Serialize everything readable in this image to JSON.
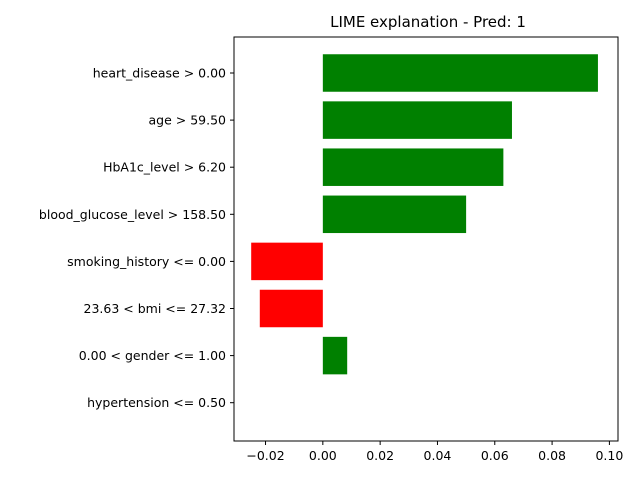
{
  "chart_data": {
    "type": "bar",
    "orientation": "horizontal",
    "title": "LIME explanation - Pred: 1",
    "xlabel": "",
    "ylabel": "",
    "categories": [
      "heart_disease > 0.00",
      "age > 59.50",
      "HbA1c_level > 6.20",
      "blood_glucose_level > 158.50",
      "smoking_history <= 0.00",
      "23.63 < bmi <= 27.32",
      "0.00 < gender <= 1.00",
      "hypertension <= 0.50"
    ],
    "values": [
      0.096,
      0.066,
      0.063,
      0.05,
      -0.025,
      -0.022,
      0.0085,
      0.0
    ],
    "xlim": [
      -0.031,
      0.103
    ],
    "xticks": [
      -0.02,
      0.0,
      0.02,
      0.04,
      0.06,
      0.08,
      0.1
    ],
    "xtick_labels": [
      "−0.02",
      "0.00",
      "0.02",
      "0.04",
      "0.06",
      "0.08",
      "0.10"
    ],
    "grid": false,
    "colors": {
      "positive": "#008000",
      "negative": "#ff0000"
    }
  }
}
